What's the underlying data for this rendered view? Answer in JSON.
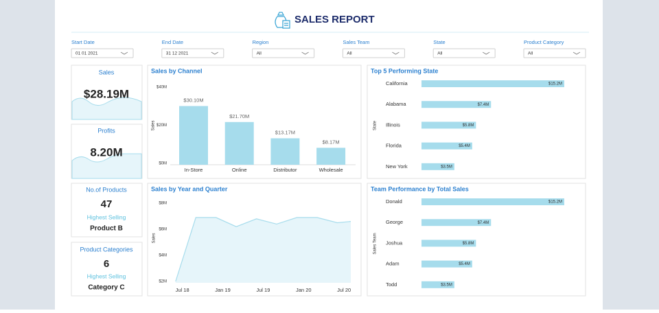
{
  "header": {
    "title": "SALES REPORT"
  },
  "filters": [
    {
      "label": "Start Date",
      "value": "01 01 2021"
    },
    {
      "label": "End Date",
      "value": "31 12 2021"
    },
    {
      "label": "Region",
      "value": "All"
    },
    {
      "label": "Sales Team",
      "value": "All"
    },
    {
      "label": "State",
      "value": "All"
    },
    {
      "label": "Product Category",
      "value": "All"
    }
  ],
  "cards": [
    {
      "title": "Sales",
      "value": "$28.19M"
    },
    {
      "title": "Profits",
      "value": "8.20M"
    },
    {
      "title": "No.of Products",
      "value": "47",
      "subtitle": "Highest Selling",
      "detail": "Product B"
    },
    {
      "title": "Product Categories",
      "value": "6",
      "subtitle": "Highest Selling",
      "detail": "Category C"
    }
  ],
  "chart_data": [
    {
      "type": "bar",
      "title": "Sales by Channel",
      "y_label": "Sales",
      "color": "#a6dcec",
      "categories": [
        "In-Store",
        "Online",
        "Distributor",
        "Wholesale"
      ],
      "values": [
        30.1,
        21.7,
        13.17,
        8.17
      ],
      "value_labels": [
        "$30.10M",
        "$21.70M",
        "$13.17M",
        "$8.17M"
      ],
      "ylim": [
        0,
        40
      ],
      "yticks": [
        {
          "value": 0,
          "label": "$0M"
        },
        {
          "value": 20,
          "label": "$20M"
        },
        {
          "value": 40,
          "label": "$40M"
        }
      ]
    },
    {
      "type": "hbar",
      "title": "Top 5 Performing State",
      "y_label": "State",
      "color": "#a6dcec",
      "categories": [
        "California",
        "Alabama",
        "Illinois",
        "Florida",
        "New York"
      ],
      "values": [
        15.2,
        7.4,
        5.8,
        5.4,
        3.5
      ],
      "value_labels": [
        "$15.2M",
        "$7.4M",
        "$5.8M",
        "$5.4M",
        "$3.5M"
      ]
    },
    {
      "type": "area",
      "title": "Sales by Year and Quarter",
      "y_label": "Sales",
      "color": "#a6dcec",
      "x": [
        "2018-06",
        "2018-09",
        "2018-12",
        "2019-03",
        "2019-06",
        "2019-09",
        "2019-12",
        "2020-03",
        "2020-06",
        "2020-08"
      ],
      "values": [
        2.0,
        6.9,
        6.9,
        6.2,
        6.8,
        6.4,
        6.9,
        6.9,
        6.5,
        6.6
      ],
      "xlim": [
        "2018-05",
        "2020-08"
      ],
      "xticks": [
        {
          "value": "2018-07",
          "label": "Jul 18"
        },
        {
          "value": "2019-01",
          "label": "Jan 19"
        },
        {
          "value": "2019-07",
          "label": "Jul 19"
        },
        {
          "value": "2020-01",
          "label": "Jan 20"
        },
        {
          "value": "2020-07",
          "label": "Jul 20"
        }
      ],
      "ylim": [
        2,
        8
      ],
      "yticks": [
        {
          "value": 2,
          "label": "$2M"
        },
        {
          "value": 4,
          "label": "$4M"
        },
        {
          "value": 6,
          "label": "$6M"
        },
        {
          "value": 8,
          "label": "$8M"
        }
      ]
    },
    {
      "type": "hbar",
      "title": "Team Performance by Total Sales",
      "y_label": "Sales Team",
      "color": "#a6dcec",
      "categories": [
        "Donald",
        "George",
        "Joshua",
        "Adam",
        "Todd"
      ],
      "values": [
        15.2,
        7.4,
        5.8,
        5.4,
        3.5
      ],
      "value_labels": [
        "$15.2M",
        "$7.4M",
        "$5.8M",
        "$5.4M",
        "$3.5M"
      ]
    }
  ]
}
